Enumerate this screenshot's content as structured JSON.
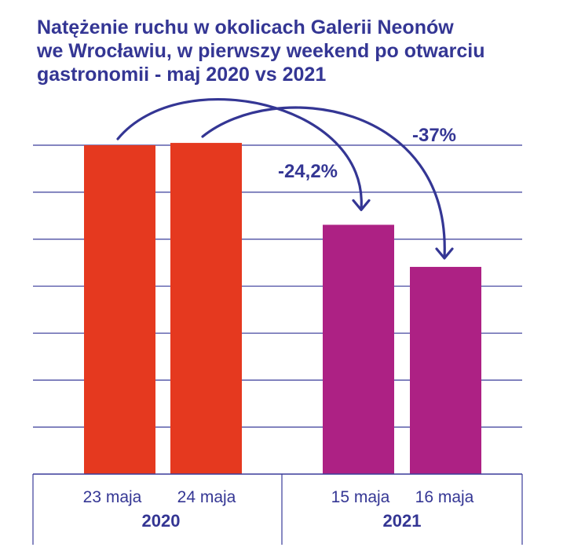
{
  "colors": {
    "text": "#343694",
    "grid": "#3a3c9a",
    "bar_2020": "#e5391f",
    "bar_2021": "#ad2184",
    "arrow": "#343694"
  },
  "chart_data": {
    "type": "bar",
    "title_lines": [
      "Natężenie ruchu w okolicach Galerii Neonów",
      "we Wrocławiu, w pierwszy weekend po otwarciu",
      "gastronomii - maj 2020 vs 2021"
    ],
    "xlabel": "",
    "ylabel": "",
    "ylim": [
      0,
      100
    ],
    "grid": true,
    "y_tick_labels_shown": false,
    "categories": [
      "23 maja",
      "24 maja",
      "15 maja",
      "16 maja"
    ],
    "groups": [
      {
        "label": "2020",
        "categories": [
          "23 maja",
          "24 maja"
        ]
      },
      {
        "label": "2021",
        "categories": [
          "15 maja",
          "16 maja"
        ]
      }
    ],
    "values": [
      100,
      100.7,
      75.8,
      63
    ],
    "annotations": [
      {
        "text": "-24,2%",
        "from": "23 maja",
        "to": "15 maja"
      },
      {
        "text": "-37%",
        "from": "24 maja",
        "to": "16 maja"
      }
    ]
  }
}
